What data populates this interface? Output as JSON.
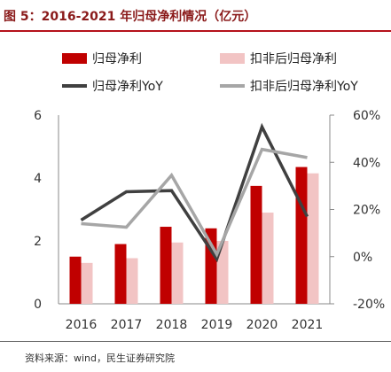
{
  "figure_title": "图 5：2016-2021 年归母净利情况（亿元）",
  "source": "资料来源：wind，民生证券研究院",
  "chart_data": {
    "type": "bar",
    "categories": [
      "2016",
      "2017",
      "2018",
      "2019",
      "2020",
      "2021"
    ],
    "series": [
      {
        "name": "归母净利",
        "kind": "bar",
        "axis": "left",
        "color": "#c00000",
        "values": [
          1.5,
          1.9,
          2.45,
          2.4,
          3.75,
          4.35
        ]
      },
      {
        "name": "扣非后归母净利",
        "kind": "bar",
        "axis": "left",
        "color": "#f2c4c4",
        "values": [
          1.3,
          1.45,
          1.95,
          2.0,
          2.9,
          4.15
        ]
      },
      {
        "name": "归母净利YoY",
        "kind": "line",
        "axis": "right",
        "color": "#404040",
        "values": [
          15.5,
          27.5,
          28.0,
          -1.0,
          55.0,
          17.0
        ]
      },
      {
        "name": "扣非后归母净利YoY",
        "kind": "line",
        "axis": "right",
        "color": "#a6a6a6",
        "values": [
          14.0,
          12.5,
          34.5,
          1.0,
          45.5,
          42.0
        ]
      }
    ],
    "left_axis": {
      "ticks": [
        "0",
        "2",
        "4",
        "6"
      ],
      "ylim": [
        0,
        6
      ]
    },
    "right_axis": {
      "ticks": [
        "-20%",
        "0%",
        "20%",
        "40%",
        "60%"
      ],
      "ylim": [
        -20,
        60
      ]
    },
    "legend_position": "top",
    "grid": false
  }
}
